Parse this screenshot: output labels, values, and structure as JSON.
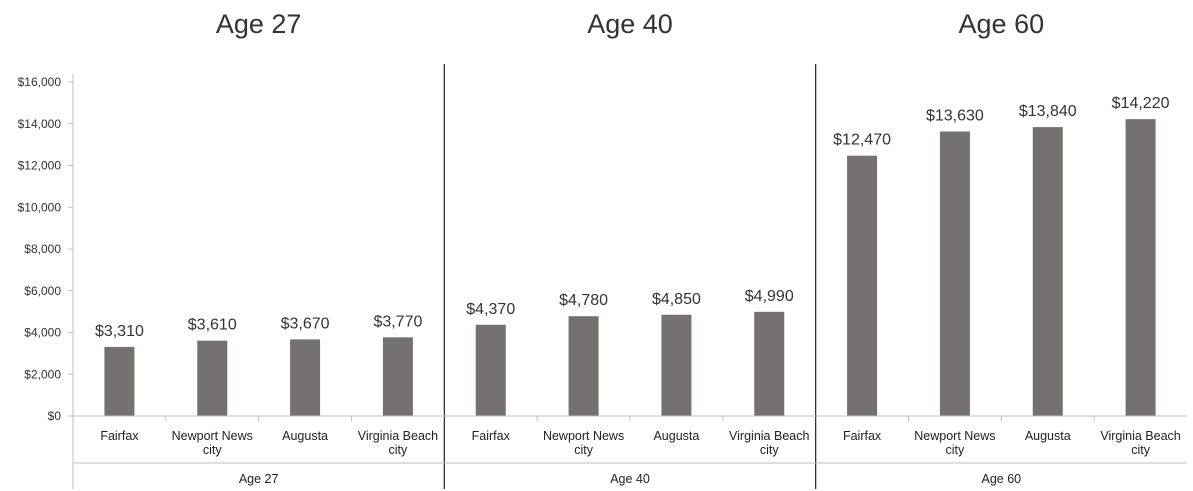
{
  "chart_data": {
    "type": "bar",
    "panel_titles": [
      "Age 27",
      "Age 40",
      "Age 60"
    ],
    "categories": [
      "Fairfax",
      "Newport News city",
      "Augusta",
      "Virginia Beach city"
    ],
    "groups": [
      {
        "name": "Age 27",
        "values": [
          3310,
          3610,
          3670,
          3770
        ],
        "labels": [
          "$3,310",
          "$3,610",
          "$3,670",
          "$3,770"
        ]
      },
      {
        "name": "Age 40",
        "values": [
          4370,
          4780,
          4850,
          4990
        ],
        "labels": [
          "$4,370",
          "$4,780",
          "$4,850",
          "$4,990"
        ]
      },
      {
        "name": "Age 60",
        "values": [
          12470,
          13630,
          13840,
          14220
        ],
        "labels": [
          "$12,470",
          "$13,630",
          "$13,840",
          "$14,220"
        ]
      }
    ],
    "yticks": [
      0,
      2000,
      4000,
      6000,
      8000,
      10000,
      12000,
      14000,
      16000
    ],
    "ytick_labels": [
      "$0",
      "$2,000",
      "$4,000",
      "$6,000",
      "$8,000",
      "$10,000",
      "$12,000",
      "$14,000",
      "$16,000"
    ],
    "ylim": [
      0,
      16000
    ],
    "grid": false,
    "bar_color": "#757171",
    "axis_color": "#bfbfbf",
    "divider_color": "#222222"
  }
}
